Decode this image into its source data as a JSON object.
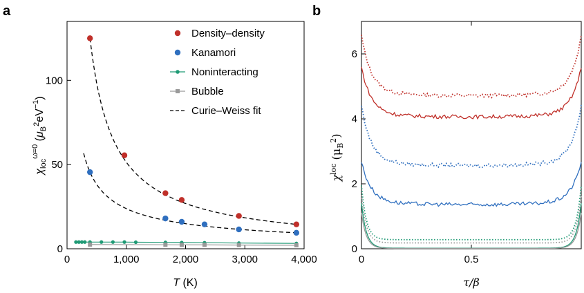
{
  "chart_data": [
    {
      "panel": "a",
      "type": "scatter",
      "xlabel_var": "T",
      "xlabel_unit": " (K)",
      "ylabel": "χ_loc^(ω=0) (μ_B^2 eV^-1)",
      "xlim": [
        0,
        4000
      ],
      "ylim": [
        0,
        135
      ],
      "xticks": [
        0,
        1000,
        2000,
        3000,
        4000
      ],
      "xtick_labels": [
        "0",
        "1,000",
        "2,000",
        "3,000",
        "4,000"
      ],
      "yticks": [
        0,
        50,
        100
      ],
      "ytick_labels": [
        "0",
        "50",
        "100"
      ],
      "legend_position": "top-right",
      "series": [
        {
          "name": "Density–density",
          "color": "#c0302a",
          "marker": "circle",
          "x": [
            387,
            968,
            1660,
            1935,
            2900,
            3870
          ],
          "y": [
            125,
            55.5,
            33,
            29,
            19.5,
            14.5
          ]
        },
        {
          "name": "Kanamori",
          "color": "#2f6fbf",
          "marker": "circle",
          "x": [
            387,
            1660,
            1935,
            2320,
            2900,
            3870
          ],
          "y": [
            45.5,
            18,
            16,
            14.5,
            11.5,
            9.5
          ]
        },
        {
          "name": "Noninteracting",
          "color": "#1f9a75",
          "marker": "circle-line",
          "x": [
            150,
            200,
            250,
            300,
            387,
            580,
            774,
            968,
            1160,
            1660,
            1935,
            2320,
            2900,
            3870
          ],
          "y": [
            4,
            4,
            4,
            4,
            4,
            4,
            4,
            4,
            3.9,
            3.8,
            3.7,
            3.6,
            3.4,
            3.2
          ]
        },
        {
          "name": "Bubble",
          "color": "#9a9a9a",
          "marker": "square-line",
          "x": [
            387,
            1660,
            1935,
            2320,
            2900,
            3870
          ],
          "y": [
            2.5,
            2.4,
            2.3,
            2.3,
            2.2,
            2.1
          ]
        },
        {
          "name": "Curie–Weiss fit",
          "color": "#000000",
          "marker": "dashed-line",
          "x": [],
          "y": []
        }
      ]
    },
    {
      "panel": "b",
      "type": "line",
      "xlabel": "τ/β",
      "ylabel_sym": "χ",
      "ylabel_sub": "loc",
      "ylabel_unit_open": "(μ",
      "ylabel_unit_sub": "B",
      "ylabel_unit_sup": "2",
      "ylabel_unit_close": ")",
      "xlim": [
        0,
        1
      ],
      "ylim": [
        0,
        7
      ],
      "xticks": [
        0,
        0.5
      ],
      "xtick_labels": [
        "0",
        "0.5"
      ],
      "yticks": [
        0,
        2,
        4,
        6
      ],
      "ytick_labels": [
        "0",
        "2",
        "4",
        "6"
      ],
      "series": [
        {
          "color": "#c0302a",
          "style": "dotted",
          "edge": 6.45,
          "mid": 4.7
        },
        {
          "color": "#c0302a",
          "style": "solid",
          "edge": 5.5,
          "mid": 4.05
        },
        {
          "color": "#2f6fbf",
          "style": "dotted",
          "edge": 4.3,
          "mid": 2.55
        },
        {
          "color": "#2f6fbf",
          "style": "solid",
          "edge": 2.6,
          "mid": 1.35
        },
        {
          "color": "#1f9a75",
          "style": "dotted",
          "edge": 1.95,
          "mid": 0.28
        },
        {
          "color": "#9a9a9a",
          "style": "dotted",
          "edge": 1.65,
          "mid": 0.18
        },
        {
          "color": "#1f9a75",
          "style": "solid",
          "edge": 1.4,
          "mid": 0.02
        },
        {
          "color": "#9a9a9a",
          "style": "solid",
          "edge": 1.1,
          "mid": 0.01
        }
      ]
    }
  ]
}
